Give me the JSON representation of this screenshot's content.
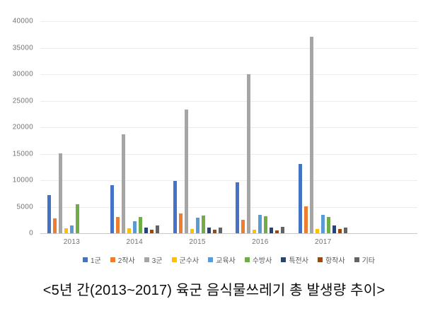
{
  "caption": "<5년 간(2013~2017) 육군 음식물쓰레기 총 발생량 추이>",
  "colors": {
    "background": "#ffffff",
    "gridline": "#ececec",
    "axis_line": "#c9c9c9",
    "axis_text": "#737373",
    "legend_text": "#595959",
    "caption_text": "#0b0b0b"
  },
  "chart_data": {
    "type": "bar",
    "title": "",
    "xlabel": "",
    "ylabel": "",
    "categories": [
      "2013",
      "2014",
      "2015",
      "2016",
      "2017"
    ],
    "series": [
      {
        "name": "1군",
        "color": "#4472C4",
        "values": [
          7200,
          9000,
          9800,
          9600,
          13000
        ]
      },
      {
        "name": "2작사",
        "color": "#ED7D31",
        "values": [
          2800,
          3000,
          3700,
          2500,
          5000
        ]
      },
      {
        "name": "3군",
        "color": "#A5A5A5",
        "values": [
          15000,
          18700,
          23300,
          30000,
          37100
        ]
      },
      {
        "name": "군수사",
        "color": "#FFC000",
        "values": [
          900,
          900,
          800,
          650,
          800
        ]
      },
      {
        "name": "교육사",
        "color": "#5B9BD5",
        "values": [
          1500,
          2300,
          2900,
          3400,
          3500
        ]
      },
      {
        "name": "수방사",
        "color": "#70AD47",
        "values": [
          5500,
          3000,
          3300,
          3200,
          3000
        ]
      },
      {
        "name": "특전사",
        "color": "#264478",
        "values": [
          0,
          1000,
          1100,
          1100,
          1500
        ]
      },
      {
        "name": "항작사",
        "color": "#9E480E",
        "values": [
          0,
          700,
          700,
          550,
          750
        ]
      },
      {
        "name": "기타",
        "color": "#636363",
        "values": [
          0,
          1400,
          1100,
          1250,
          1100
        ]
      }
    ],
    "y_ticks": [
      "0",
      "5000",
      "10000",
      "15000",
      "20000",
      "25000",
      "30000",
      "35000",
      "40000"
    ],
    "ylim": [
      0,
      40000
    ],
    "ytick_step": 5000,
    "grid": true,
    "legend_position": "bottom",
    "x_slots": 6
  }
}
